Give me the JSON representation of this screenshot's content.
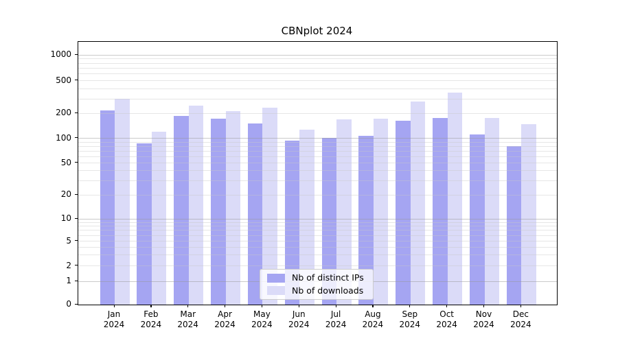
{
  "chart_data": {
    "type": "bar",
    "title": "CBNplot 2024",
    "months": [
      "Jan",
      "Feb",
      "Mar",
      "Apr",
      "May",
      "Jun",
      "Jul",
      "Aug",
      "Sep",
      "Oct",
      "Nov",
      "Dec"
    ],
    "year_label": "2024",
    "series": [
      {
        "name": "Nb of distinct IPs",
        "values": [
          215,
          87,
          187,
          172,
          152,
          94,
          101,
          108,
          163,
          177,
          111,
          81
        ]
      },
      {
        "name": "Nb of downloads",
        "values": [
          300,
          121,
          249,
          212,
          235,
          127,
          168,
          173,
          277,
          357,
          177,
          148
        ]
      }
    ],
    "y_ticks": [
      0,
      1,
      2,
      5,
      10,
      20,
      50,
      100,
      200,
      500,
      1000
    ],
    "yscale": "symlog",
    "ylim": [
      0,
      1400
    ],
    "grid": "horizontal, major and minor, drawn over bars",
    "legend_position": "lower center inside plot"
  },
  "colors": {
    "bar_distinct_ips": "#a5a5f2",
    "bar_downloads": "#dbdbf8",
    "axis": "#000000",
    "grid_major": "#c9c9c9",
    "grid_minor": "#ececec",
    "legend_border": "#cccccc",
    "legend_background": "rgba(255,255,255,0.8)"
  }
}
